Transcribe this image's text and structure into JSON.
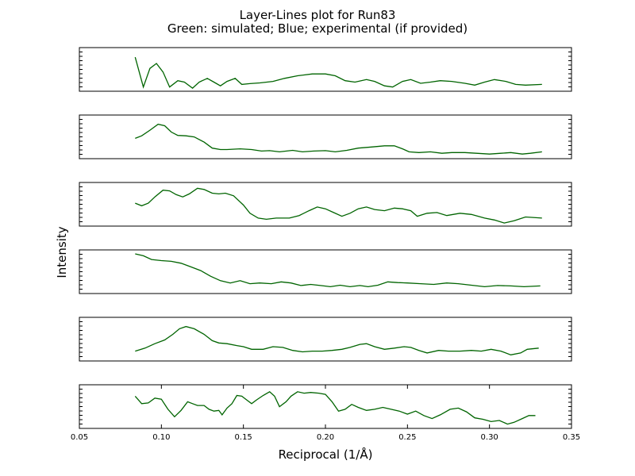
{
  "chart_data": {
    "type": "line",
    "title_line1": "Layer-Lines plot for Run83",
    "title_line2": "Green: simulated; Blue; experimental (if provided)",
    "xlabel": "Reciprocal (1/Å)",
    "ylabel": "Intensity",
    "xlim": [
      0.05,
      0.35
    ],
    "x_ticks": [
      0.05,
      0.1,
      0.15,
      0.2,
      0.25,
      0.3,
      0.35
    ],
    "x_tick_labels": [
      "0.05",
      "0.10",
      "0.15",
      "0.20",
      "0.25",
      "0.30",
      "0.35"
    ],
    "grid": false,
    "series_color": "#006400",
    "panels": [
      {
        "points": [
          [
            0.084,
            0.85
          ],
          [
            0.089,
            0.05
          ],
          [
            0.093,
            0.55
          ],
          [
            0.097,
            0.68
          ],
          [
            0.101,
            0.45
          ],
          [
            0.105,
            0.05
          ],
          [
            0.11,
            0.22
          ],
          [
            0.114,
            0.18
          ],
          [
            0.119,
            0.02
          ],
          [
            0.123,
            0.18
          ],
          [
            0.128,
            0.28
          ],
          [
            0.132,
            0.18
          ],
          [
            0.136,
            0.08
          ],
          [
            0.14,
            0.2
          ],
          [
            0.145,
            0.28
          ],
          [
            0.149,
            0.12
          ],
          [
            0.154,
            0.14
          ],
          [
            0.16,
            0.16
          ],
          [
            0.168,
            0.2
          ],
          [
            0.175,
            0.28
          ],
          [
            0.183,
            0.35
          ],
          [
            0.192,
            0.4
          ],
          [
            0.2,
            0.4
          ],
          [
            0.206,
            0.35
          ],
          [
            0.212,
            0.22
          ],
          [
            0.218,
            0.18
          ],
          [
            0.225,
            0.25
          ],
          [
            0.23,
            0.2
          ],
          [
            0.236,
            0.08
          ],
          [
            0.241,
            0.05
          ],
          [
            0.247,
            0.2
          ],
          [
            0.252,
            0.25
          ],
          [
            0.258,
            0.15
          ],
          [
            0.264,
            0.18
          ],
          [
            0.27,
            0.22
          ],
          [
            0.277,
            0.2
          ],
          [
            0.285,
            0.15
          ],
          [
            0.291,
            0.1
          ],
          [
            0.297,
            0.18
          ],
          [
            0.303,
            0.25
          ],
          [
            0.31,
            0.2
          ],
          [
            0.316,
            0.12
          ],
          [
            0.322,
            0.1
          ],
          [
            0.332,
            0.12
          ]
        ]
      },
      {
        "points": [
          [
            0.084,
            0.48
          ],
          [
            0.088,
            0.55
          ],
          [
            0.093,
            0.7
          ],
          [
            0.098,
            0.86
          ],
          [
            0.102,
            0.82
          ],
          [
            0.106,
            0.65
          ],
          [
            0.11,
            0.56
          ],
          [
            0.115,
            0.55
          ],
          [
            0.12,
            0.52
          ],
          [
            0.126,
            0.38
          ],
          [
            0.131,
            0.22
          ],
          [
            0.136,
            0.18
          ],
          [
            0.14,
            0.18
          ],
          [
            0.148,
            0.2
          ],
          [
            0.155,
            0.18
          ],
          [
            0.161,
            0.14
          ],
          [
            0.166,
            0.15
          ],
          [
            0.172,
            0.12
          ],
          [
            0.18,
            0.16
          ],
          [
            0.186,
            0.12
          ],
          [
            0.193,
            0.14
          ],
          [
            0.2,
            0.15
          ],
          [
            0.206,
            0.12
          ],
          [
            0.213,
            0.16
          ],
          [
            0.22,
            0.22
          ],
          [
            0.228,
            0.25
          ],
          [
            0.236,
            0.28
          ],
          [
            0.242,
            0.28
          ],
          [
            0.247,
            0.2
          ],
          [
            0.251,
            0.12
          ],
          [
            0.257,
            0.1
          ],
          [
            0.264,
            0.12
          ],
          [
            0.271,
            0.08
          ],
          [
            0.277,
            0.1
          ],
          [
            0.285,
            0.1
          ],
          [
            0.292,
            0.08
          ],
          [
            0.3,
            0.06
          ],
          [
            0.307,
            0.08
          ],
          [
            0.313,
            0.1
          ],
          [
            0.32,
            0.06
          ],
          [
            0.325,
            0.08
          ],
          [
            0.332,
            0.12
          ]
        ]
      },
      {
        "points": [
          [
            0.084,
            0.55
          ],
          [
            0.088,
            0.48
          ],
          [
            0.092,
            0.55
          ],
          [
            0.096,
            0.72
          ],
          [
            0.101,
            0.9
          ],
          [
            0.105,
            0.88
          ],
          [
            0.109,
            0.78
          ],
          [
            0.113,
            0.72
          ],
          [
            0.117,
            0.8
          ],
          [
            0.122,
            0.95
          ],
          [
            0.126,
            0.92
          ],
          [
            0.131,
            0.82
          ],
          [
            0.135,
            0.8
          ],
          [
            0.139,
            0.82
          ],
          [
            0.144,
            0.75
          ],
          [
            0.15,
            0.5
          ],
          [
            0.154,
            0.28
          ],
          [
            0.159,
            0.15
          ],
          [
            0.164,
            0.12
          ],
          [
            0.17,
            0.15
          ],
          [
            0.178,
            0.15
          ],
          [
            0.184,
            0.22
          ],
          [
            0.19,
            0.35
          ],
          [
            0.195,
            0.45
          ],
          [
            0.2,
            0.4
          ],
          [
            0.205,
            0.3
          ],
          [
            0.21,
            0.2
          ],
          [
            0.215,
            0.28
          ],
          [
            0.22,
            0.4
          ],
          [
            0.225,
            0.45
          ],
          [
            0.23,
            0.38
          ],
          [
            0.236,
            0.35
          ],
          [
            0.242,
            0.42
          ],
          [
            0.247,
            0.4
          ],
          [
            0.252,
            0.35
          ],
          [
            0.256,
            0.2
          ],
          [
            0.262,
            0.28
          ],
          [
            0.268,
            0.3
          ],
          [
            0.274,
            0.22
          ],
          [
            0.282,
            0.28
          ],
          [
            0.289,
            0.25
          ],
          [
            0.297,
            0.15
          ],
          [
            0.303,
            0.1
          ],
          [
            0.309,
            0.02
          ],
          [
            0.315,
            0.08
          ],
          [
            0.322,
            0.18
          ],
          [
            0.332,
            0.15
          ]
        ]
      },
      {
        "points": [
          [
            0.084,
            1.0
          ],
          [
            0.089,
            0.95
          ],
          [
            0.094,
            0.85
          ],
          [
            0.1,
            0.82
          ],
          [
            0.106,
            0.8
          ],
          [
            0.112,
            0.75
          ],
          [
            0.118,
            0.65
          ],
          [
            0.124,
            0.55
          ],
          [
            0.13,
            0.4
          ],
          [
            0.136,
            0.28
          ],
          [
            0.142,
            0.22
          ],
          [
            0.148,
            0.28
          ],
          [
            0.154,
            0.2
          ],
          [
            0.16,
            0.22
          ],
          [
            0.167,
            0.2
          ],
          [
            0.173,
            0.25
          ],
          [
            0.179,
            0.22
          ],
          [
            0.185,
            0.15
          ],
          [
            0.191,
            0.18
          ],
          [
            0.197,
            0.15
          ],
          [
            0.203,
            0.12
          ],
          [
            0.209,
            0.16
          ],
          [
            0.215,
            0.12
          ],
          [
            0.221,
            0.15
          ],
          [
            0.226,
            0.12
          ],
          [
            0.232,
            0.16
          ],
          [
            0.238,
            0.25
          ],
          [
            0.244,
            0.23
          ],
          [
            0.25,
            0.22
          ],
          [
            0.258,
            0.2
          ],
          [
            0.266,
            0.18
          ],
          [
            0.274,
            0.22
          ],
          [
            0.281,
            0.2
          ],
          [
            0.289,
            0.16
          ],
          [
            0.297,
            0.12
          ],
          [
            0.305,
            0.15
          ],
          [
            0.313,
            0.14
          ],
          [
            0.321,
            0.12
          ],
          [
            0.331,
            0.14
          ]
        ]
      },
      {
        "points": [
          [
            0.084,
            0.2
          ],
          [
            0.09,
            0.28
          ],
          [
            0.096,
            0.4
          ],
          [
            0.102,
            0.5
          ],
          [
            0.107,
            0.65
          ],
          [
            0.111,
            0.8
          ],
          [
            0.115,
            0.86
          ],
          [
            0.12,
            0.8
          ],
          [
            0.126,
            0.65
          ],
          [
            0.131,
            0.48
          ],
          [
            0.135,
            0.42
          ],
          [
            0.14,
            0.4
          ],
          [
            0.146,
            0.35
          ],
          [
            0.15,
            0.32
          ],
          [
            0.155,
            0.25
          ],
          [
            0.162,
            0.25
          ],
          [
            0.168,
            0.32
          ],
          [
            0.174,
            0.3
          ],
          [
            0.18,
            0.22
          ],
          [
            0.186,
            0.18
          ],
          [
            0.192,
            0.2
          ],
          [
            0.198,
            0.2
          ],
          [
            0.204,
            0.22
          ],
          [
            0.21,
            0.25
          ],
          [
            0.215,
            0.3
          ],
          [
            0.221,
            0.38
          ],
          [
            0.225,
            0.4
          ],
          [
            0.23,
            0.32
          ],
          [
            0.236,
            0.25
          ],
          [
            0.242,
            0.28
          ],
          [
            0.248,
            0.32
          ],
          [
            0.252,
            0.3
          ],
          [
            0.257,
            0.22
          ],
          [
            0.262,
            0.15
          ],
          [
            0.269,
            0.22
          ],
          [
            0.275,
            0.2
          ],
          [
            0.282,
            0.2
          ],
          [
            0.289,
            0.22
          ],
          [
            0.295,
            0.2
          ],
          [
            0.301,
            0.25
          ],
          [
            0.307,
            0.2
          ],
          [
            0.313,
            0.1
          ],
          [
            0.319,
            0.15
          ],
          [
            0.323,
            0.25
          ],
          [
            0.33,
            0.28
          ]
        ]
      },
      {
        "points": [
          [
            0.084,
            0.8
          ],
          [
            0.088,
            0.6
          ],
          [
            0.092,
            0.62
          ],
          [
            0.096,
            0.75
          ],
          [
            0.1,
            0.72
          ],
          [
            0.104,
            0.45
          ],
          [
            0.108,
            0.25
          ],
          [
            0.112,
            0.42
          ],
          [
            0.116,
            0.65
          ],
          [
            0.119,
            0.6
          ],
          [
            0.122,
            0.55
          ],
          [
            0.126,
            0.55
          ],
          [
            0.129,
            0.45
          ],
          [
            0.132,
            0.4
          ],
          [
            0.135,
            0.42
          ],
          [
            0.137,
            0.3
          ],
          [
            0.14,
            0.48
          ],
          [
            0.143,
            0.6
          ],
          [
            0.146,
            0.82
          ],
          [
            0.149,
            0.8
          ],
          [
            0.152,
            0.7
          ],
          [
            0.155,
            0.6
          ],
          [
            0.158,
            0.7
          ],
          [
            0.162,
            0.82
          ],
          [
            0.166,
            0.92
          ],
          [
            0.169,
            0.8
          ],
          [
            0.172,
            0.52
          ],
          [
            0.176,
            0.65
          ],
          [
            0.179,
            0.8
          ],
          [
            0.183,
            0.92
          ],
          [
            0.187,
            0.88
          ],
          [
            0.191,
            0.9
          ],
          [
            0.196,
            0.88
          ],
          [
            0.2,
            0.85
          ],
          [
            0.204,
            0.65
          ],
          [
            0.208,
            0.4
          ],
          [
            0.212,
            0.45
          ],
          [
            0.216,
            0.58
          ],
          [
            0.22,
            0.5
          ],
          [
            0.225,
            0.42
          ],
          [
            0.23,
            0.45
          ],
          [
            0.235,
            0.5
          ],
          [
            0.24,
            0.45
          ],
          [
            0.245,
            0.4
          ],
          [
            0.25,
            0.32
          ],
          [
            0.255,
            0.4
          ],
          [
            0.26,
            0.28
          ],
          [
            0.265,
            0.2
          ],
          [
            0.27,
            0.3
          ],
          [
            0.276,
            0.45
          ],
          [
            0.281,
            0.48
          ],
          [
            0.286,
            0.38
          ],
          [
            0.291,
            0.22
          ],
          [
            0.296,
            0.18
          ],
          [
            0.301,
            0.12
          ],
          [
            0.306,
            0.15
          ],
          [
            0.311,
            0.05
          ],
          [
            0.315,
            0.1
          ],
          [
            0.32,
            0.2
          ],
          [
            0.324,
            0.28
          ],
          [
            0.328,
            0.28
          ]
        ]
      }
    ]
  }
}
